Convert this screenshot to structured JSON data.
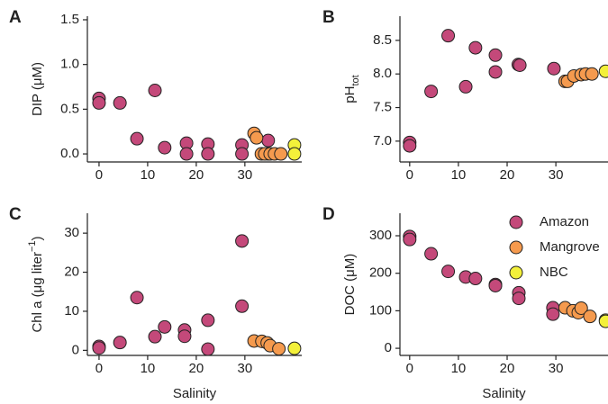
{
  "chart_data": [
    {
      "type": "scatter",
      "panel_label": "A",
      "y_label": "DIP (μM)",
      "xlim": [
        -2.4,
        41.7
      ],
      "ylim": [
        -0.09,
        1.54
      ],
      "xticks": [
        0,
        10,
        20,
        30
      ],
      "yticks": [
        {
          "value": 0,
          "label": "0.0"
        },
        {
          "value": 0.5,
          "label": "0.5"
        },
        {
          "value": 1,
          "label": "1.0"
        },
        {
          "value": 1.5,
          "label": "1.5"
        }
      ],
      "series": [
        {
          "color": "#c4497a",
          "x": [
            0,
            0,
            4.3,
            7.8,
            11.5,
            13.5,
            18,
            18,
            22.4,
            22.4,
            29.4,
            29.4,
            34.8,
            34.8
          ],
          "values": [
            0.62,
            0.57,
            0.57,
            0.17,
            0.71,
            0.07,
            0.12,
            0.0,
            0.11,
            0.0,
            0.1,
            0.0,
            0.15,
            0.0
          ]
        },
        {
          "color": "#f59a4e",
          "x": [
            31.9,
            32.4,
            33.4,
            34.1,
            35.2,
            36.1,
            37.4
          ],
          "values": [
            0.23,
            0.18,
            0,
            0,
            0,
            0,
            0
          ]
        },
        {
          "color": "#f3f03a",
          "x": [
            40.2,
            40.2
          ],
          "values": [
            0.1,
            0.0
          ]
        }
      ]
    },
    {
      "type": "scatter",
      "panel_label": "B",
      "y_label": "pH",
      "y_label_sub": "tot",
      "xlim": [
        -2,
        40.7
      ],
      "ylim": [
        6.69,
        8.86
      ],
      "xticks": [
        0,
        10,
        20,
        30
      ],
      "yticks": [
        {
          "value": 7,
          "label": "7.0"
        },
        7.5,
        {
          "value": 8,
          "label": "8.0"
        },
        8.5
      ],
      "series": [
        {
          "color": "#c4497a",
          "x": [
            0,
            0,
            4.4,
            7.9,
            11.5,
            13.5,
            17.6,
            17.6,
            22.3,
            22.6,
            29.6
          ],
          "values": [
            6.98,
            6.93,
            7.74,
            8.57,
            7.81,
            8.39,
            8.28,
            8.03,
            8.14,
            8.13,
            8.08
          ]
        },
        {
          "color": "#f59a4e",
          "x": [
            31.9,
            32.4,
            33.7,
            35.2,
            36.1,
            37.4
          ],
          "values": [
            7.89,
            7.89,
            7.97,
            7.99,
            8.0,
            8.0
          ]
        },
        {
          "color": "#f3f03a",
          "x": [
            40.2
          ],
          "values": [
            8.04
          ]
        }
      ]
    },
    {
      "type": "scatter",
      "panel_label": "C",
      "y_label": "Chl a (μg liter",
      "y_label_sup": "−1",
      "y_label_end": ")",
      "x_label": "Salinity",
      "xlim": [
        -2.4,
        41.7
      ],
      "ylim": [
        -1.3,
        35.1
      ],
      "xticks": [
        0,
        10,
        20,
        30
      ],
      "yticks": [
        0,
        10,
        20,
        30
      ],
      "series": [
        {
          "color": "#c4497a",
          "x": [
            0,
            0,
            4.3,
            7.8,
            11.5,
            13.5,
            17.6,
            17.6,
            22.4,
            22.4,
            29.4,
            29.4
          ],
          "values": [
            1,
            0.6,
            2,
            13.5,
            3.5,
            6,
            5.2,
            3.6,
            7.7,
            0.3,
            28,
            11.3
          ]
        },
        {
          "color": "#f59a4e",
          "x": [
            31.9,
            33.5,
            34.6,
            35.2,
            37
          ],
          "values": [
            2.4,
            2.3,
            1.9,
            1.2,
            0.4
          ]
        },
        {
          "color": "#f3f03a",
          "x": [
            40.2
          ],
          "values": [
            0.5
          ]
        }
      ]
    },
    {
      "type": "scatter",
      "panel_label": "D",
      "y_label": "DOC (μM)",
      "x_label": "Salinity",
      "legend": "upper right",
      "xlim": [
        -2,
        40.7
      ],
      "ylim": [
        -19,
        360
      ],
      "xticks": [
        0,
        10,
        20,
        30
      ],
      "yticks": [
        0,
        100,
        200,
        300
      ],
      "series": [
        {
          "name": "Amazon",
          "color": "#c4497a",
          "x": [
            0,
            0,
            4.4,
            7.9,
            11.5,
            13.5,
            17.6,
            17.6,
            22.4,
            22.4,
            29.4,
            29.4
          ],
          "values": [
            298,
            290,
            252,
            205,
            190,
            186,
            170,
            167,
            148,
            133,
            108,
            91
          ]
        },
        {
          "name": "Mangrove",
          "color": "#f59a4e",
          "x": [
            31.9,
            33.5,
            34.6,
            35.2,
            37
          ],
          "values": [
            108,
            100,
            95,
            107,
            85
          ]
        },
        {
          "name": "NBC",
          "color": "#f3f03a",
          "x": [
            40.2,
            40.2
          ],
          "values": [
            75,
            72
          ]
        }
      ]
    }
  ]
}
